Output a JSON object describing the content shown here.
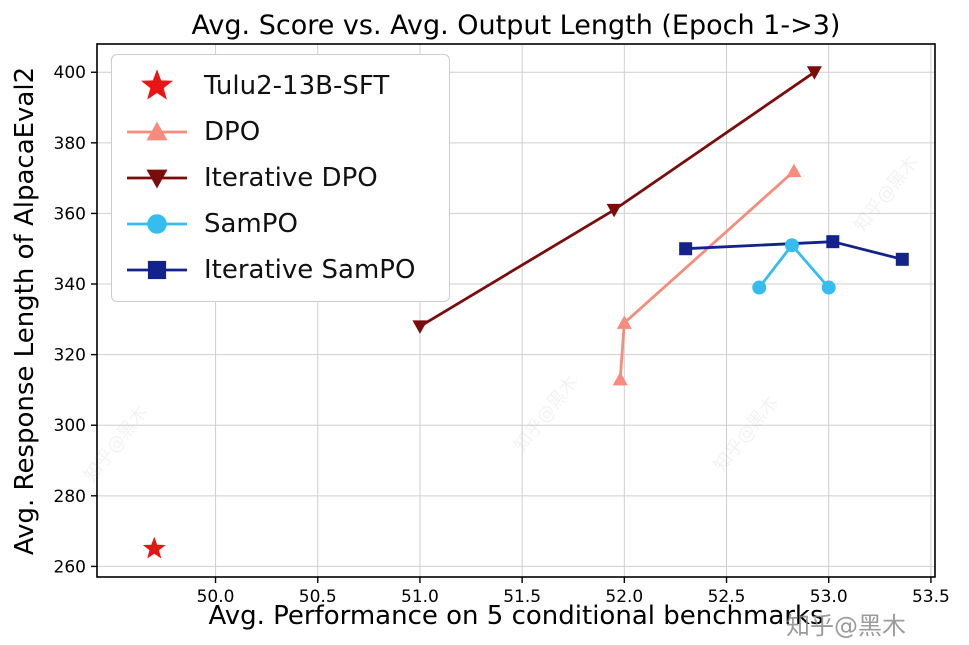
{
  "chart_data": {
    "type": "line",
    "title": "Avg. Score vs. Avg. Output Length (Epoch 1->3)",
    "xlabel": "Avg. Performance on 5 conditional benchmarks",
    "ylabel": "Avg. Response Length of AlpacaEval2",
    "xlim": [
      49.42,
      53.52
    ],
    "ylim": [
      257,
      408
    ],
    "x_ticks": [
      50.0,
      50.5,
      51.0,
      51.5,
      52.0,
      52.5,
      53.0,
      53.5
    ],
    "y_ticks": [
      260,
      280,
      300,
      320,
      340,
      360,
      380,
      400
    ],
    "grid": true,
    "legend_position": "upper-left",
    "series": [
      {
        "name": "Tulu2-13B-SFT",
        "marker": "star",
        "color": "#ec1313",
        "line": false,
        "zorder": 1,
        "points": [
          [
            49.7,
            265
          ]
        ]
      },
      {
        "name": "DPO",
        "marker": "triangle-up",
        "color": "#f78c7d",
        "line": true,
        "zorder": 2,
        "points": [
          [
            51.98,
            313
          ],
          [
            52.0,
            329
          ],
          [
            52.83,
            372
          ]
        ]
      },
      {
        "name": "Iterative DPO",
        "marker": "triangle-down",
        "color": "#7a0c0c",
        "line": true,
        "zorder": 3,
        "points": [
          [
            51.0,
            328
          ],
          [
            51.95,
            361
          ],
          [
            52.93,
            400
          ]
        ]
      },
      {
        "name": "SamPO",
        "marker": "circle",
        "color": "#35bdf0",
        "line": true,
        "zorder": 5,
        "points": [
          [
            52.66,
            339
          ],
          [
            52.82,
            351
          ],
          [
            53.0,
            339
          ]
        ]
      },
      {
        "name": "Iterative SamPO",
        "marker": "square",
        "color": "#14238c",
        "line": true,
        "zorder": 4,
        "points": [
          [
            52.3,
            350
          ],
          [
            53.02,
            352
          ],
          [
            53.36,
            347
          ]
        ]
      }
    ]
  },
  "watermark": {
    "text": "知乎@黑木"
  }
}
